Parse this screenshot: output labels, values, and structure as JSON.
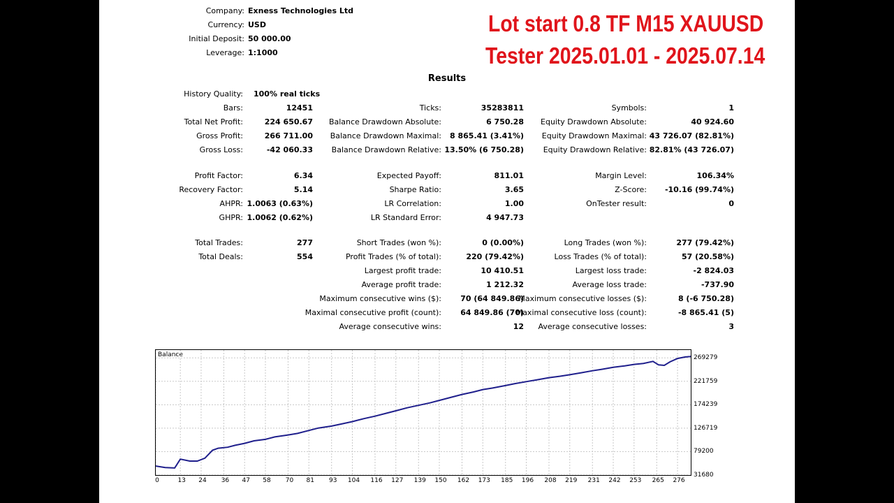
{
  "header": {
    "company_label": "Company:",
    "company_value": "Exness Technologies Ltd",
    "currency_label": "Currency:",
    "currency_value": "USD",
    "deposit_label": "Initial Deposit:",
    "deposit_value": "50 000.00",
    "leverage_label": "Leverage:",
    "leverage_value": "1:1000"
  },
  "overlay": {
    "line1": "Lot start 0.8   TF M15  XAUUSD",
    "line2": "Tester 2025.01.01 - 2025.07.14",
    "color": "#e0141b"
  },
  "results": {
    "title": "Results",
    "history_quality_label": "History Quality:",
    "history_quality_value": "100% real ticks",
    "col1": [
      {
        "label": "Bars:",
        "value": "12451"
      },
      {
        "label": "Total Net Profit:",
        "value": "224 650.67"
      },
      {
        "label": "Gross Profit:",
        "value": "266 711.00"
      },
      {
        "label": "Gross Loss:",
        "value": "-42 060.33"
      },
      {
        "label": "Profit Factor:",
        "value": "6.34"
      },
      {
        "label": "Recovery Factor:",
        "value": "5.14"
      },
      {
        "label": "AHPR:",
        "value": "1.0063 (0.63%)"
      },
      {
        "label": "GHPR:",
        "value": "1.0062 (0.62%)"
      },
      {
        "label": "Total Trades:",
        "value": "277"
      },
      {
        "label": "Total Deals:",
        "value": "554"
      }
    ],
    "col2": [
      {
        "label": "Ticks:",
        "value": "35283811"
      },
      {
        "label": "Balance Drawdown Absolute:",
        "value": "6 750.28"
      },
      {
        "label": "Balance Drawdown Maximal:",
        "value": "8 865.41 (3.41%)"
      },
      {
        "label": "Balance Drawdown Relative:",
        "value": "13.50% (6 750.28)"
      },
      {
        "label": "Expected Payoff:",
        "value": "811.01"
      },
      {
        "label": "Sharpe Ratio:",
        "value": "3.65"
      },
      {
        "label": "LR Correlation:",
        "value": "1.00"
      },
      {
        "label": "LR Standard Error:",
        "value": "4 947.73"
      },
      {
        "label": "Short Trades (won %):",
        "value": "0 (0.00%)"
      },
      {
        "label": "Profit Trades (% of total):",
        "value": "220 (79.42%)"
      },
      {
        "label": "Largest profit trade:",
        "value": "10 410.51"
      },
      {
        "label": "Average profit trade:",
        "value": "1 212.32"
      },
      {
        "label": "Maximum consecutive wins ($):",
        "value": "70 (64 849.86)"
      },
      {
        "label": "Maximal consecutive profit (count):",
        "value": "64 849.86 (70)"
      },
      {
        "label": "Average consecutive wins:",
        "value": "12"
      }
    ],
    "col3": [
      {
        "label": "Symbols:",
        "value": "1"
      },
      {
        "label": "Equity Drawdown Absolute:",
        "value": "40 924.60"
      },
      {
        "label": "Equity Drawdown Maximal:",
        "value": "43 726.07 (82.81%)"
      },
      {
        "label": "Equity Drawdown Relative:",
        "value": "82.81% (43 726.07)"
      },
      {
        "label": "Margin Level:",
        "value": "106.34%"
      },
      {
        "label": "Z-Score:",
        "value": "-10.16 (99.74%)"
      },
      {
        "label": "OnTester result:",
        "value": "0"
      },
      {
        "label": "Long Trades (won %):",
        "value": "277 (79.42%)"
      },
      {
        "label": "Loss Trades (% of total):",
        "value": "57 (20.58%)"
      },
      {
        "label": "Largest loss trade:",
        "value": "-2 824.03"
      },
      {
        "label": "Average loss trade:",
        "value": "-737.90"
      },
      {
        "label": "Maximum consecutive losses ($):",
        "value": "8 (-6 750.28)"
      },
      {
        "label": "Maximal consecutive loss (count):",
        "value": "-8 865.41 (5)"
      },
      {
        "label": "Average consecutive losses:",
        "value": "3"
      }
    ]
  },
  "chart_data": {
    "type": "line",
    "title": "Balance",
    "x_ticks": [
      "0",
      "13",
      "24",
      "36",
      "47",
      "58",
      "70",
      "81",
      "93",
      "104",
      "116",
      "127",
      "139",
      "150",
      "162",
      "173",
      "185",
      "196",
      "208",
      "219",
      "231",
      "242",
      "253",
      "265",
      "276"
    ],
    "y_ticks": [
      "269279",
      "221759",
      "174239",
      "126719",
      "79200",
      "31680"
    ],
    "ylim": [
      31680,
      285119
    ],
    "xlim": [
      0,
      283
    ],
    "grid": true,
    "line_color": "#1f1f8c",
    "series": [
      {
        "x": [
          0,
          5,
          10,
          13,
          18,
          22,
          26,
          30,
          33,
          38,
          42,
          47,
          52,
          58,
          63,
          70,
          75,
          81,
          86,
          93,
          98,
          104,
          110,
          116,
          122,
          127,
          133,
          139,
          145,
          150,
          156,
          162,
          168,
          173,
          178,
          185,
          190,
          196,
          202,
          208,
          214,
          219,
          225,
          231,
          236,
          242,
          248,
          253,
          258,
          263,
          266,
          269,
          272,
          276,
          280,
          283
        ],
        "y": [
          50000,
          47000,
          46000,
          64000,
          60000,
          60000,
          66000,
          82000,
          86000,
          88000,
          92000,
          96000,
          101000,
          104000,
          109000,
          113000,
          116000,
          122000,
          127000,
          131000,
          135000,
          140000,
          146000,
          151000,
          157000,
          162000,
          168000,
          173000,
          178000,
          183000,
          189000,
          195000,
          200000,
          205000,
          208000,
          213000,
          217000,
          221000,
          225000,
          229000,
          232000,
          235000,
          239000,
          243000,
          246000,
          250000,
          253000,
          256000,
          258000,
          262000,
          255000,
          254000,
          261000,
          268000,
          271000,
          272000
        ]
      }
    ]
  }
}
